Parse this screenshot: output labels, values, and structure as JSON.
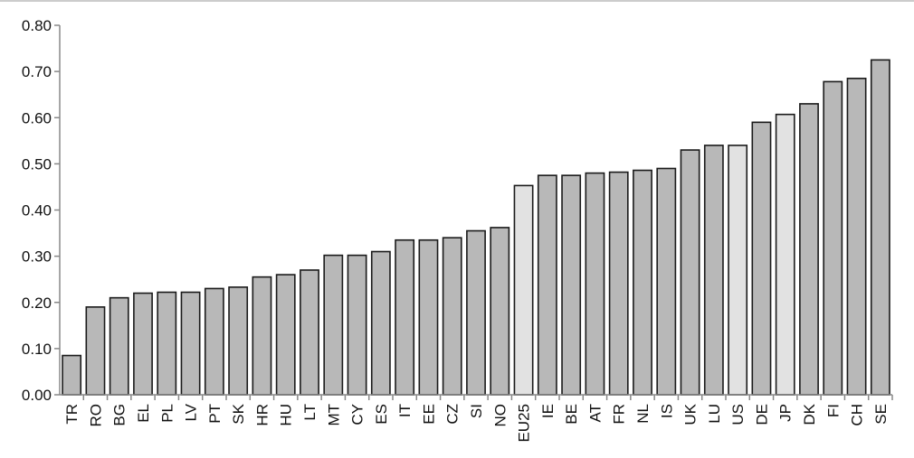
{
  "chart_data": {
    "type": "bar",
    "title": "",
    "xlabel": "",
    "ylabel": "",
    "ylim": [
      0,
      0.8
    ],
    "yticks": [
      "0.00",
      "0.10",
      "0.20",
      "0.30",
      "0.40",
      "0.50",
      "0.60",
      "0.70",
      "0.80"
    ],
    "grid": false,
    "colors": {
      "default": "#b8b8b8",
      "highlight": "#e2e2e2"
    },
    "categories": [
      "TR",
      "RO",
      "BG",
      "EL",
      "PL",
      "LV",
      "PT",
      "SK",
      "HR",
      "HU",
      "LT",
      "MT",
      "CY",
      "ES",
      "IT",
      "EE",
      "CZ",
      "SI",
      "NO",
      "EU25",
      "IE",
      "BE",
      "AT",
      "FR",
      "NL",
      "IS",
      "UK",
      "LU",
      "US",
      "DE",
      "JP",
      "DK",
      "FI",
      "CH",
      "SE"
    ],
    "values": [
      0.085,
      0.19,
      0.21,
      0.22,
      0.222,
      0.222,
      0.23,
      0.233,
      0.255,
      0.26,
      0.27,
      0.302,
      0.302,
      0.31,
      0.335,
      0.335,
      0.34,
      0.355,
      0.362,
      0.453,
      0.475,
      0.475,
      0.48,
      0.482,
      0.486,
      0.49,
      0.53,
      0.54,
      0.54,
      0.59,
      0.607,
      0.63,
      0.678,
      0.685,
      0.725
    ],
    "highlighted": [
      "EU25",
      "US",
      "JP"
    ]
  }
}
